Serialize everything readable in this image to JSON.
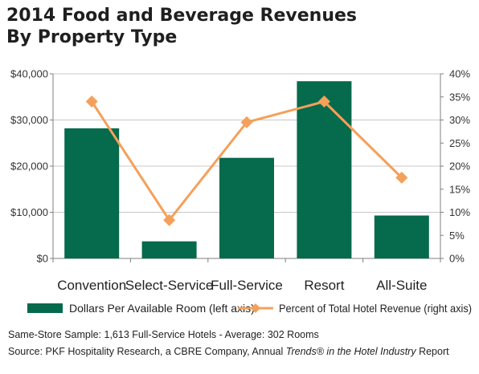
{
  "header": {
    "title_line1": "2014 Food and Beverage Revenues",
    "title_line2": "By Property Type"
  },
  "chart_data": {
    "type": "bar",
    "categories": [
      "Convention",
      "Select-Service",
      "Full-Service",
      "Resort",
      "All-Suite"
    ],
    "series": [
      {
        "name": "Dollars Per Available Room (left axis)",
        "chart": "bar",
        "axis": "left",
        "values": [
          28200,
          3700,
          21800,
          38400,
          9300
        ]
      },
      {
        "name": "Percent of Total Hotel Revenue (right axis)",
        "chart": "line",
        "axis": "right",
        "values": [
          34,
          8.3,
          29.5,
          34,
          17.5
        ]
      }
    ],
    "left_axis": {
      "ylim": [
        0,
        40000
      ],
      "ticks": [
        0,
        10000,
        20000,
        30000,
        40000
      ],
      "tick_labels": [
        "$0",
        "$10,000",
        "$20,000",
        "$30,000",
        "$40,000"
      ]
    },
    "right_axis": {
      "ylim": [
        0,
        40
      ],
      "ticks": [
        0,
        5,
        10,
        15,
        20,
        25,
        30,
        35,
        40
      ],
      "tick_labels": [
        "0%",
        "5%",
        "10%",
        "15%",
        "20%",
        "25%",
        "30%",
        "35%",
        "40%"
      ]
    },
    "grid": true,
    "legend_position": "bottom",
    "colors": {
      "bar": "#066a4c",
      "line": "#f5a05a",
      "grid": "#c8c8c8",
      "axis": "#7f7f7f"
    }
  },
  "footer": {
    "line1": "Same-Store Sample: 1,613 Full-Service Hotels - Average: 302 Rooms",
    "line2_prefix": "Source: PKF Hospitality Research, a CBRE Company, Annual ",
    "line2_italic": "Trends® in the Hotel Industry",
    "line2_suffix": " Report"
  }
}
